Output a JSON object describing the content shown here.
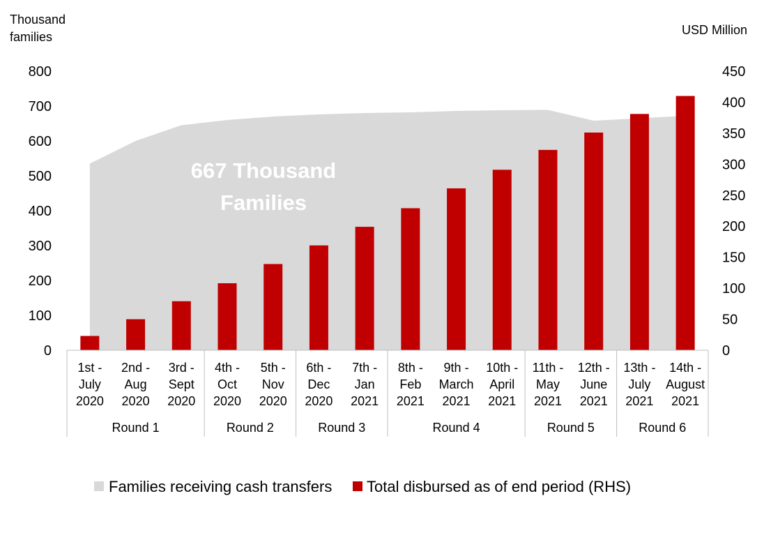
{
  "chart_data": {
    "type": "bar",
    "categories": [
      [
        "1st -",
        "July",
        "2020"
      ],
      [
        "2nd -",
        "Aug",
        "2020"
      ],
      [
        "3rd -",
        "Sept",
        "2020"
      ],
      [
        "4th -",
        "Oct",
        "2020"
      ],
      [
        "5th -",
        "Nov",
        "2020"
      ],
      [
        "6th -",
        "Dec",
        "2020"
      ],
      [
        "7th -",
        "Jan",
        "2021"
      ],
      [
        "8th -",
        "Feb",
        "2021"
      ],
      [
        "9th -",
        "March",
        "2021"
      ],
      [
        "10th -",
        "April",
        "2021"
      ],
      [
        "11th -",
        "May",
        "2021"
      ],
      [
        "12th -",
        "June",
        "2021"
      ],
      [
        "13th -",
        "July",
        "2021"
      ],
      [
        "14th -",
        "August",
        "2021"
      ]
    ],
    "rounds": [
      {
        "label": "Round 1",
        "start": 0,
        "end": 2
      },
      {
        "label": "Round 2",
        "start": 3,
        "end": 4
      },
      {
        "label": "Round 3",
        "start": 5,
        "end": 6
      },
      {
        "label": "Round 4",
        "start": 7,
        "end": 9
      },
      {
        "label": "Round 5",
        "start": 10,
        "end": 11
      },
      {
        "label": "Round 6",
        "start": 12,
        "end": 13
      }
    ],
    "series": [
      {
        "name": "Families receiving cash transfers",
        "type": "area",
        "axis": "left",
        "color": "#d9d9d9",
        "values": [
          535,
          600,
          645,
          660,
          670,
          676,
          680,
          682,
          686,
          688,
          689,
          658,
          665,
          672
        ]
      },
      {
        "name": "Total disbursed as of end period (RHS)",
        "type": "bar",
        "axis": "right",
        "color": "#c00000",
        "values": [
          23,
          50,
          79,
          108,
          139,
          169,
          199,
          229,
          261,
          291,
          323,
          351,
          381,
          410
        ]
      }
    ],
    "y_left": {
      "label_line1": "Thousand",
      "label_line2": "families",
      "min": 0,
      "max": 800,
      "ticks": [
        0,
        100,
        200,
        300,
        400,
        500,
        600,
        700,
        800
      ]
    },
    "y_right": {
      "label": "USD Million",
      "min": 0,
      "max": 450,
      "ticks": [
        0,
        50,
        100,
        150,
        200,
        250,
        300,
        350,
        400,
        450
      ]
    },
    "annotation": {
      "line1": "667 Thousand",
      "line2": "Families"
    },
    "legend_position": "bottom"
  }
}
